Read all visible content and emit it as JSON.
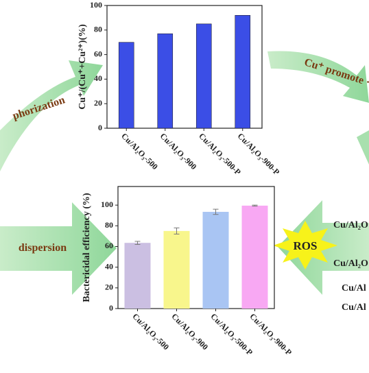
{
  "chart_data": [
    {
      "type": "bar",
      "y_label": "Cu⁺/(Cu⁺+Cu²⁺)(%)",
      "categories": [
        "Cu/Al₂O₃-500",
        "Cu/Al₂O₃-900",
        "Cu/Al₂O₃-500-P",
        "Cu/Al₂O₃-900-P"
      ],
      "values": [
        70,
        77,
        85,
        92
      ],
      "color": "#3b4ee6",
      "ylim": [
        0,
        100
      ],
      "yticks": [
        0,
        20,
        40,
        60,
        80,
        100
      ]
    },
    {
      "type": "bar",
      "y_label": "Bactericidal efficiency (%)",
      "categories": [
        "Cu/Al₂O₃-500",
        "Cu/Al₂O₃-900",
        "Cu/Al₂O₃-500-P",
        "Cu/Al₂O₃-900-P"
      ],
      "values": [
        63.5,
        75,
        93.5,
        99.5
      ],
      "errors": [
        1.5,
        3,
        2.5,
        0.5
      ],
      "colors": [
        "#cbbfe2",
        "#f8f68c",
        "#a9c5f3",
        "#f8a8f3"
      ],
      "ylim": [
        0,
        118
      ],
      "yticks": [
        0,
        20,
        40,
        60,
        80,
        100
      ]
    }
  ],
  "annotations": {
    "left_top": "phorization",
    "right_top": "Cu⁺ promote ·",
    "left_mid": "dispersion",
    "ros": "ROS",
    "right_labels": [
      "Cu/Al₂O",
      "Cu/Al₂O",
      "Cu/Al",
      "Cu/Al"
    ]
  }
}
